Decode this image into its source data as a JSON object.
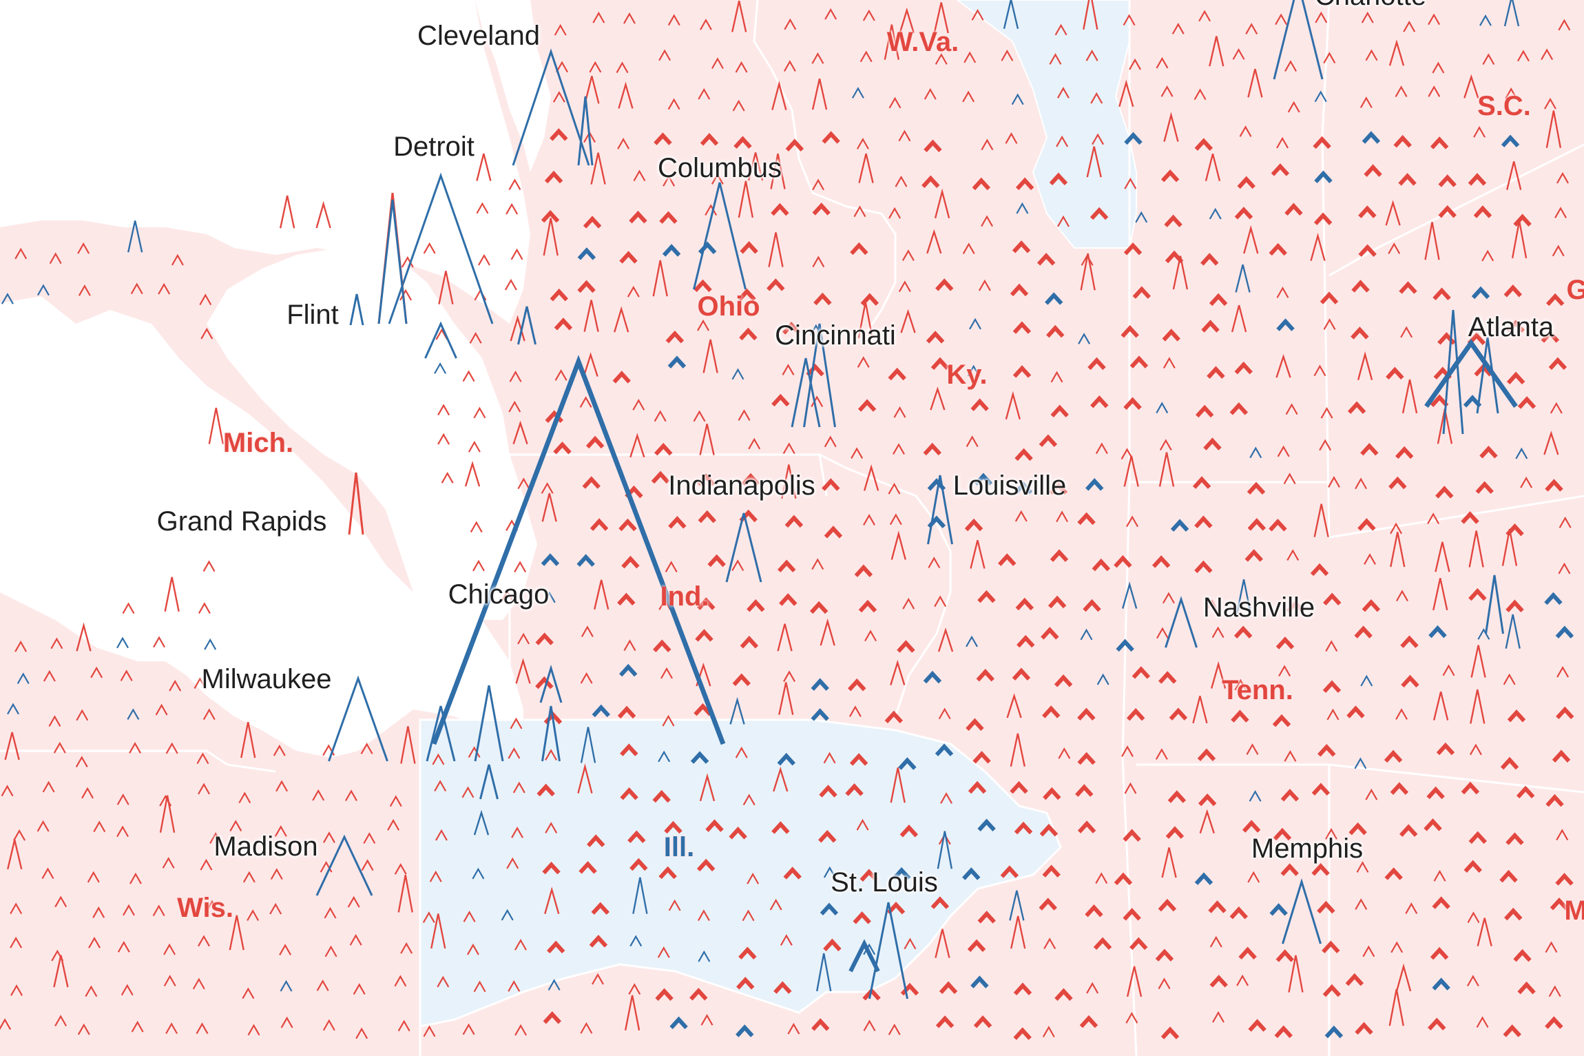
{
  "map": {
    "colors": {
      "republican_fill": "#fde8e8",
      "democratic_fill": "#e8f2fa",
      "water": "#ffffff",
      "republican_mark": "#e2473f",
      "democratic_mark": "#2f6ea8",
      "border": "#ffffff"
    },
    "legend_semantics": {
      "red": "Republican-leaning county (spike height = vote margin/size)",
      "blue": "Democratic-leaning county (spike height = vote margin/size)"
    },
    "cities": [
      {
        "id": "cleveland",
        "name": "Cleveland"
      },
      {
        "id": "detroit",
        "name": "Detroit"
      },
      {
        "id": "columbus",
        "name": "Columbus"
      },
      {
        "id": "flint",
        "name": "Flint"
      },
      {
        "id": "cincinnati",
        "name": "Cincinnati"
      },
      {
        "id": "atlanta",
        "name": "Atlanta"
      },
      {
        "id": "indianapolis",
        "name": "Indianapolis"
      },
      {
        "id": "louisville",
        "name": "Louisville"
      },
      {
        "id": "grand-rapids",
        "name": "Grand Rapids"
      },
      {
        "id": "chicago",
        "name": "Chicago"
      },
      {
        "id": "nashville",
        "name": "Nashville"
      },
      {
        "id": "milwaukee",
        "name": "Milwaukee"
      },
      {
        "id": "madison",
        "name": "Madison"
      },
      {
        "id": "memphis",
        "name": "Memphis"
      },
      {
        "id": "st-louis",
        "name": "St. Louis"
      },
      {
        "id": "charlotte",
        "name": "Charlotte"
      }
    ],
    "states": [
      {
        "id": "wva",
        "name": "W.Va.",
        "party": "R"
      },
      {
        "id": "sc",
        "name": "S.C.",
        "party": "R"
      },
      {
        "id": "ohio",
        "name": "Ohio",
        "party": "R"
      },
      {
        "id": "ky",
        "name": "Ky.",
        "party": "R"
      },
      {
        "id": "mich",
        "name": "Mich.",
        "party": "R"
      },
      {
        "id": "ind",
        "name": "Ind.",
        "party": "R"
      },
      {
        "id": "tenn",
        "name": "Tenn.",
        "party": "R"
      },
      {
        "id": "ill",
        "name": "Ill.",
        "party": "D"
      },
      {
        "id": "wis",
        "name": "Wis.",
        "party": "R"
      },
      {
        "id": "ga",
        "name": "G",
        "party": "R"
      },
      {
        "id": "miss",
        "name": "M",
        "party": "R"
      }
    ]
  }
}
